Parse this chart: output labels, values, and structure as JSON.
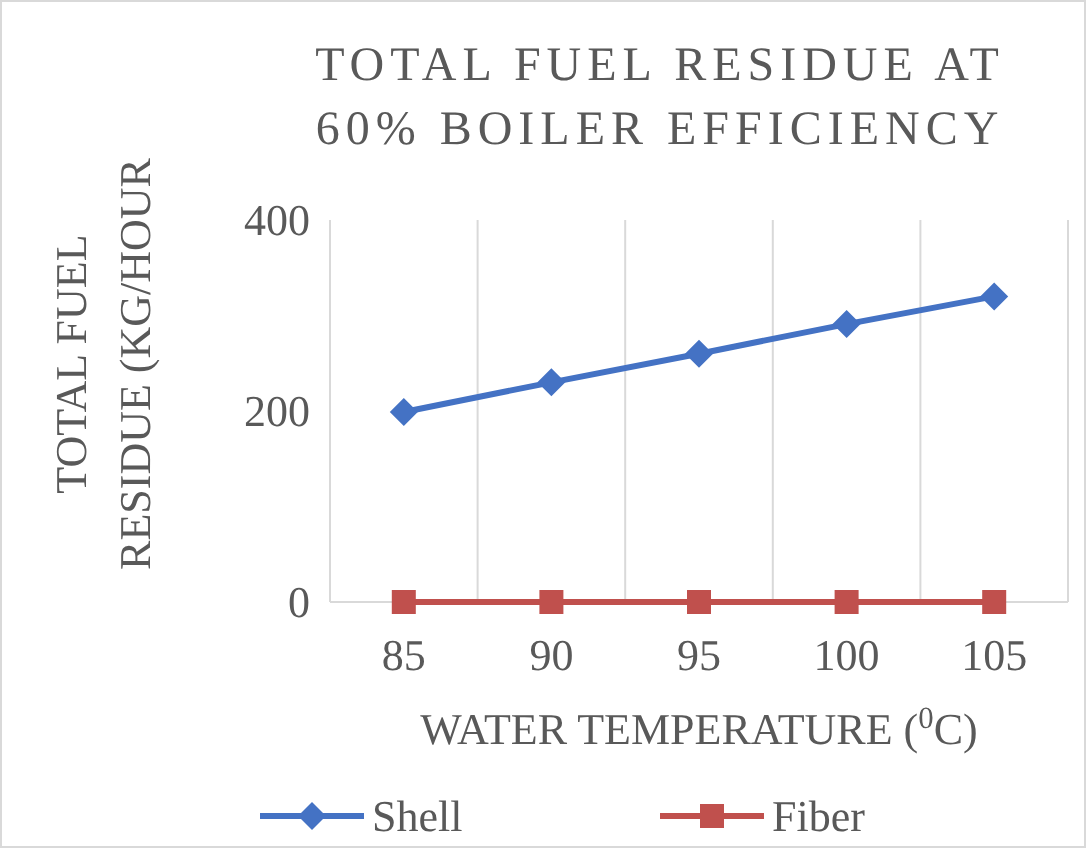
{
  "chart_data": {
    "type": "line",
    "title": "TOTAL FUEL RESIDUE AT 60% BOILER EFFICIENCY",
    "xlabel": "WATER TEMPERATURE ($^{0}$C)",
    "ylabel": "TOTAL FUEL RESIDUE (KG/HOUR",
    "categories": [
      "85",
      "90",
      "95",
      "100",
      "105"
    ],
    "series": [
      {
        "name": "Shell",
        "color": "#4472c4",
        "marker": "diamond",
        "values": [
          199,
          230,
          260,
          291,
          320
        ]
      },
      {
        "name": "Fiber",
        "color": "#c0504d",
        "marker": "square",
        "values": [
          0,
          0,
          0,
          0,
          0
        ]
      }
    ],
    "ylim": [
      0,
      400
    ],
    "yticks": [
      0,
      200,
      400
    ],
    "grid": "x",
    "legend": "bottom",
    "line_style": "solid"
  }
}
